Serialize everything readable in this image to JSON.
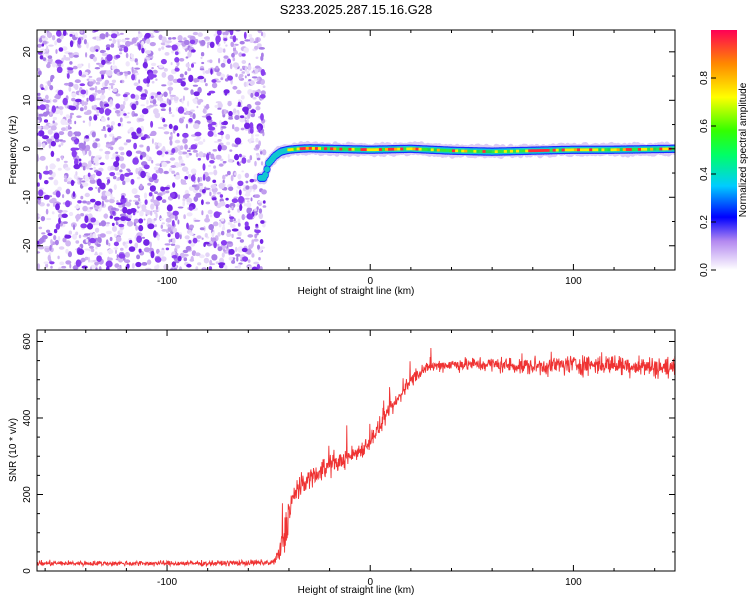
{
  "title": "S233.2025.287.15.16.G28",
  "chart_data": [
    {
      "type": "heatmap",
      "xlabel": "Height of straight line (km)",
      "ylabel": "Frequency (Hz)",
      "xlim": [
        -164,
        150
      ],
      "ylim": [
        -25,
        24.5
      ],
      "xticks": [
        -100,
        0,
        100
      ],
      "xtick_labels": [
        "-100",
        "0",
        "100"
      ],
      "yticks": [
        -20,
        -10,
        0,
        10,
        20
      ],
      "ytick_labels": [
        "-20",
        "-10",
        "0",
        "10",
        "20"
      ],
      "noise_region_x": [
        -164,
        -52
      ],
      "signal_ridge": {
        "x": [
          -52,
          -50,
          -47,
          -44,
          -40,
          -35,
          -30,
          -20,
          0,
          20,
          40,
          60,
          80,
          100,
          120,
          150
        ],
        "y": [
          -6,
          -3,
          -1.5,
          -0.6,
          -0.2,
          0,
          0.1,
          0,
          -0.2,
          0,
          -0.4,
          -0.6,
          -0.4,
          -0.2,
          -0.2,
          0
        ]
      },
      "colorbar": {
        "label": "Normalized spectral amplitude",
        "range": [
          0,
          1
        ],
        "ticks": [
          0.0,
          0.2,
          0.4,
          0.6,
          0.8
        ],
        "tick_labels": [
          "0.0",
          "0.2",
          "0.4",
          "0.6",
          "0.8"
        ]
      }
    },
    {
      "type": "line",
      "xlabel": "Height of straight line (km)",
      "ylabel": "SNR (10 * v/v)",
      "xlim": [
        -164,
        150
      ],
      "ylim": [
        0,
        630
      ],
      "xticks": [
        -100,
        0,
        100
      ],
      "xtick_labels": [
        "-100",
        "0",
        "100"
      ],
      "yticks": [
        0,
        200,
        400,
        600
      ],
      "ytick_labels": [
        "0",
        "200",
        "400",
        "600"
      ],
      "series": [
        {
          "name": "SNR",
          "color": "#ef3333",
          "x": [
            -164,
            -120,
            -80,
            -48,
            -45,
            -42,
            -40,
            -38,
            -35,
            -32,
            -28,
            -24,
            -20,
            -15,
            -10,
            -5,
            0,
            5,
            10,
            15,
            20,
            25,
            30,
            40,
            60,
            80,
            100,
            120,
            150
          ],
          "y": [
            20,
            20,
            20,
            22,
            40,
            90,
            160,
            190,
            215,
            235,
            250,
            262,
            275,
            285,
            300,
            315,
            340,
            380,
            420,
            460,
            500,
            520,
            535,
            540,
            540,
            535,
            540,
            540,
            530
          ],
          "noise": [
            10,
            10,
            10,
            12,
            40,
            80,
            60,
            55,
            45,
            40,
            40,
            40,
            38,
            36,
            36,
            34,
            34,
            32,
            30,
            28,
            25,
            22,
            22,
            25,
            30,
            35,
            40,
            40,
            40
          ]
        }
      ]
    }
  ]
}
